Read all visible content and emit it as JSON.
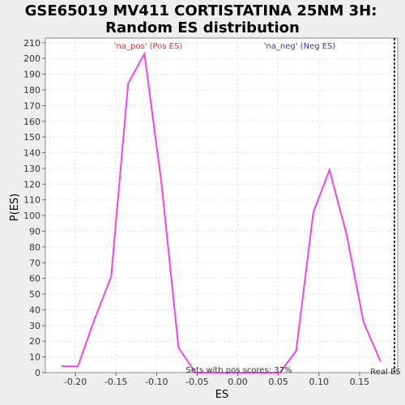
{
  "chart_data": {
    "type": "line",
    "title": [
      "GSE65019 MV411 CORTISTATINA 25NM 3H:",
      "Random ES distribution"
    ],
    "xlabel": "ES",
    "ylabel": "P(ES)",
    "xlim": [
      -0.237,
      0.197
    ],
    "ylim": [
      0,
      213
    ],
    "x_ticks": [
      -0.2,
      -0.15,
      -0.1,
      -0.05,
      0.0,
      0.05,
      0.1,
      0.15
    ],
    "x_tick_labels": [
      "-0.20",
      "-0.15",
      "-0.10",
      "-0.05",
      "0.00",
      "0.05",
      "0.10",
      "0.15"
    ],
    "y_ticks": [
      0,
      10,
      20,
      30,
      40,
      50,
      60,
      70,
      80,
      90,
      100,
      110,
      120,
      130,
      140,
      150,
      160,
      170,
      180,
      190,
      200,
      210
    ],
    "grid": true,
    "series": [
      {
        "color": "#ee44ee",
        "points": [
          [
            -0.217,
            4
          ],
          [
            -0.197,
            4
          ],
          [
            -0.177,
            33
          ],
          [
            -0.156,
            61
          ],
          [
            -0.135,
            184
          ],
          [
            -0.115,
            203
          ],
          [
            -0.094,
            121
          ],
          [
            -0.073,
            16
          ],
          [
            -0.052,
            0
          ],
          [
            -0.031,
            0
          ],
          [
            -0.011,
            0
          ],
          [
            0.01,
            0
          ],
          [
            0.031,
            0
          ],
          [
            0.052,
            0
          ],
          [
            0.072,
            14
          ],
          [
            0.093,
            102
          ],
          [
            0.113,
            129
          ],
          [
            0.134,
            88
          ],
          [
            0.155,
            32
          ],
          [
            0.176,
            7
          ]
        ]
      }
    ],
    "real_es": 0.193,
    "annotations": {
      "pos_label": "'na_pos' (Pos ES)",
      "neg_label": "'na_neg' (Neg ES)",
      "sets_with_pos": "Sets with pos scores: 37%",
      "real_es_label": "Real ES"
    },
    "colors": {
      "pos_label": "#cc3333",
      "neg_label": "#3333aa",
      "line": "#ee44ee",
      "grid": "#dddddd"
    }
  }
}
